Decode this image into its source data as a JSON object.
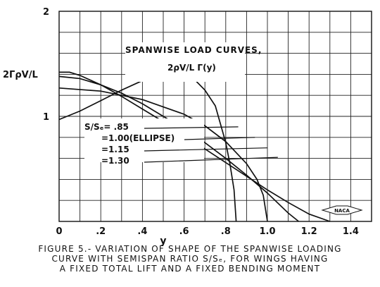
{
  "chart_data": {
    "type": "line",
    "title": "SPANWISE LOAD CURVES,",
    "curve_label_expr": "2ρV/L Γ(y)",
    "ylabel": "2ΓρV/L",
    "xlabel": "y",
    "xlim": [
      0,
      1.5
    ],
    "ylim": [
      0,
      2
    ],
    "x_ticks": [
      "0",
      ".2",
      ".4",
      ".6",
      ".8",
      "1.0",
      "1.2",
      "1.4"
    ],
    "y_ticks": [
      "1",
      "2"
    ],
    "grid": true,
    "legend_prefix": "S/Sₑ=",
    "series": [
      {
        "name": ".85",
        "x": [
          0,
          0.1,
          0.2,
          0.3,
          0.4,
          0.5,
          0.55,
          0.6,
          0.65,
          0.7,
          0.75,
          0.8,
          0.82,
          0.84,
          0.85
        ],
        "y": [
          0.97,
          1.05,
          1.15,
          1.25,
          1.34,
          1.41,
          1.43,
          1.41,
          1.35,
          1.25,
          1.1,
          0.75,
          0.55,
          0.3,
          0.0
        ]
      },
      {
        "name": "1.00(ELLIPSE)",
        "x": [
          0,
          0.2,
          0.4,
          0.6,
          0.7,
          0.8,
          0.9,
          0.95,
          0.98,
          1.0
        ],
        "y": [
          1.27,
          1.24,
          1.16,
          1.02,
          0.91,
          0.76,
          0.55,
          0.4,
          0.25,
          0.0
        ]
      },
      {
        "name": "1.15",
        "x": [
          0,
          0.1,
          0.2,
          0.3,
          0.4,
          0.5,
          0.6,
          0.7,
          0.8,
          0.9,
          1.0,
          1.1,
          1.15
        ],
        "y": [
          1.38,
          1.36,
          1.3,
          1.22,
          1.12,
          1.0,
          0.88,
          0.75,
          0.6,
          0.44,
          0.27,
          0.08,
          0.0
        ]
      },
      {
        "name": "1.30",
        "x": [
          0,
          0.05,
          0.1,
          0.2,
          0.3,
          0.4,
          0.5,
          0.6,
          0.7,
          0.8,
          0.9,
          1.0,
          1.1,
          1.2,
          1.3
        ],
        "y": [
          1.42,
          1.42,
          1.39,
          1.3,
          1.19,
          1.07,
          0.95,
          0.82,
          0.69,
          0.56,
          0.43,
          0.3,
          0.18,
          0.07,
          0.0
        ]
      }
    ]
  },
  "logo_text": "NACA",
  "caption": [
    "FIGURE 5.- VARIATION OF SHAPE OF THE SPANWISE LOADING",
    "CURVE WITH SEMISPAN RATIO S/Sₑ, FOR WINGS HAVING",
    "A FIXED TOTAL LIFT AND A FIXED BENDING MOMENT"
  ]
}
